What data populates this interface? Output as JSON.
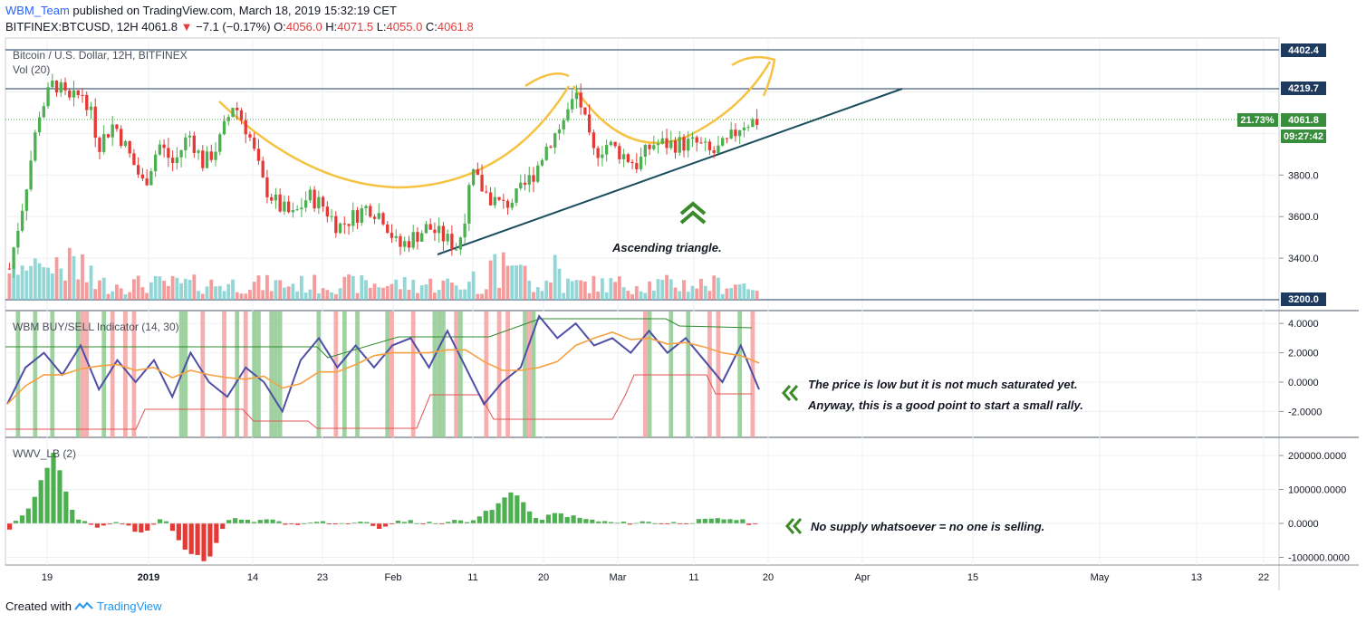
{
  "header": {
    "author": "WBM_Team",
    "published_text": "published on TradingView.com, March 18, 2019 15:32:19 CET",
    "symbol": "BITFINEX:BTCUSD, 12H",
    "last": "4061.8",
    "change": "−7.1 (−0.17%)",
    "o_label": "O:",
    "o_value": "4056.0",
    "h_label": "H:",
    "h_value": "4071.5",
    "l_label": "L:",
    "l_value": "4055.0",
    "c_label": "C:",
    "c_value": "4061.8"
  },
  "main_pane": {
    "title": "Bitcoin / U.S. Dollar, 12H, BITFINEX",
    "volume_label": "Vol (20)",
    "annotation": "Ascending triangle.",
    "price_labels": [
      "4402.4",
      "4219.7",
      "3200.0"
    ],
    "current_price": "4061.8",
    "current_percent": "21.73%",
    "countdown": "09:27:42",
    "y_ticks": [
      "3800.0",
      "3600.0",
      "3400.0"
    ]
  },
  "indicator_pane": {
    "title": "WBM BUY/SELL Indicator (14, 30)",
    "note_line1": "The price is low but it is not much saturated yet.",
    "note_line2": "Anyway, this is a good point to start a small rally.",
    "y_ticks": [
      "4.0000",
      "2.0000",
      "0.0000",
      "-2.0000"
    ]
  },
  "wwv_pane": {
    "title": "WWV_LB (2)",
    "note": "No supply whatsoever = no one is selling.",
    "y_ticks": [
      "200000.0000",
      "100000.0000",
      "0.0000",
      "-100000.0000"
    ]
  },
  "x_axis": {
    "labels": [
      "19",
      "2019",
      "14",
      "23",
      "Feb",
      "11",
      "20",
      "Mar",
      "11",
      "20",
      "Apr",
      "15",
      "May",
      "13",
      "22"
    ]
  },
  "footer": {
    "created_with": "Created with",
    "brand": "TradingView"
  },
  "colors": {
    "bull": "#4caf50",
    "bear": "#e53935",
    "vol_bull": "#7fcfcf",
    "vol_bear": "#f28a8a",
    "label_blue": "#1e3a5f",
    "label_green": "#388e3c",
    "trend": "#1b4d5c",
    "arc": "#f5c242",
    "indicator_line": "#4e4fa5",
    "indicator_ma": "#f5a142",
    "upper_band": "#2e8b2e",
    "lower_band": "#e05555",
    "arrow_green": "#3a8a2a"
  },
  "chart_data": [
    {
      "type": "candlestick",
      "title": "Bitcoin / U.S. Dollar, 12H, BITFINEX",
      "ylim": [
        3200,
        4480
      ],
      "x_range": [
        "Dec 17 2018",
        "Mar 18 2019"
      ],
      "levels": [
        4402.4,
        4219.7,
        4061.8,
        3200.0
      ],
      "close_series": [
        3350,
        3700,
        4100,
        4250,
        4150,
        4200,
        3950,
        4050,
        3900,
        3750,
        3950,
        3850,
        4000,
        3850,
        3950,
        4150,
        4000,
        3750,
        3650,
        3600,
        3700,
        3650,
        3550,
        3600,
        3650,
        3600,
        3450,
        3500,
        3550,
        3500,
        3450,
        3800,
        3700,
        3650,
        3700,
        3800,
        3950,
        4050,
        4200,
        3900,
        3950,
        3900,
        3850,
        3950,
        3950,
        3950,
        3950,
        3900,
        3950,
        4050,
        4061.8
      ],
      "volume_label": "Vol (20)"
    },
    {
      "type": "line",
      "title": "WBM BUY/SELL Indicator (14, 30)",
      "ylim": [
        -3.5,
        4.6
      ],
      "series": [
        {
          "values": [
            -1.5,
            1,
            2,
            0.5,
            2.5,
            -0.5,
            1.5,
            0,
            1.5,
            -1,
            2,
            0,
            -1,
            1,
            0,
            -2,
            1.5,
            3,
            1,
            2.5,
            1,
            2.5,
            3,
            1,
            3.5,
            1,
            -1.5,
            0,
            1,
            4.5,
            3,
            4,
            2.5,
            3,
            2,
            3.5,
            2,
            3,
            1.5,
            0,
            2.5,
            -0.5
          ]
        }
      ]
    },
    {
      "type": "bar",
      "title": "WWV_LB (2)",
      "ylim": [
        -120000,
        230000
      ],
      "series": [
        {
          "values": [
            -20000,
            60000,
            210000,
            10000,
            -10000,
            5000,
            -30000,
            20000,
            -80000,
            -110000,
            15000,
            5000,
            10000,
            -10000,
            5000,
            0,
            5000,
            -15000,
            10000,
            0,
            5000,
            10000,
            40000,
            100000,
            10000,
            30000,
            15000,
            5000,
            0,
            5000,
            0,
            5000,
            10000,
            15000,
            -5000
          ]
        }
      ]
    }
  ]
}
